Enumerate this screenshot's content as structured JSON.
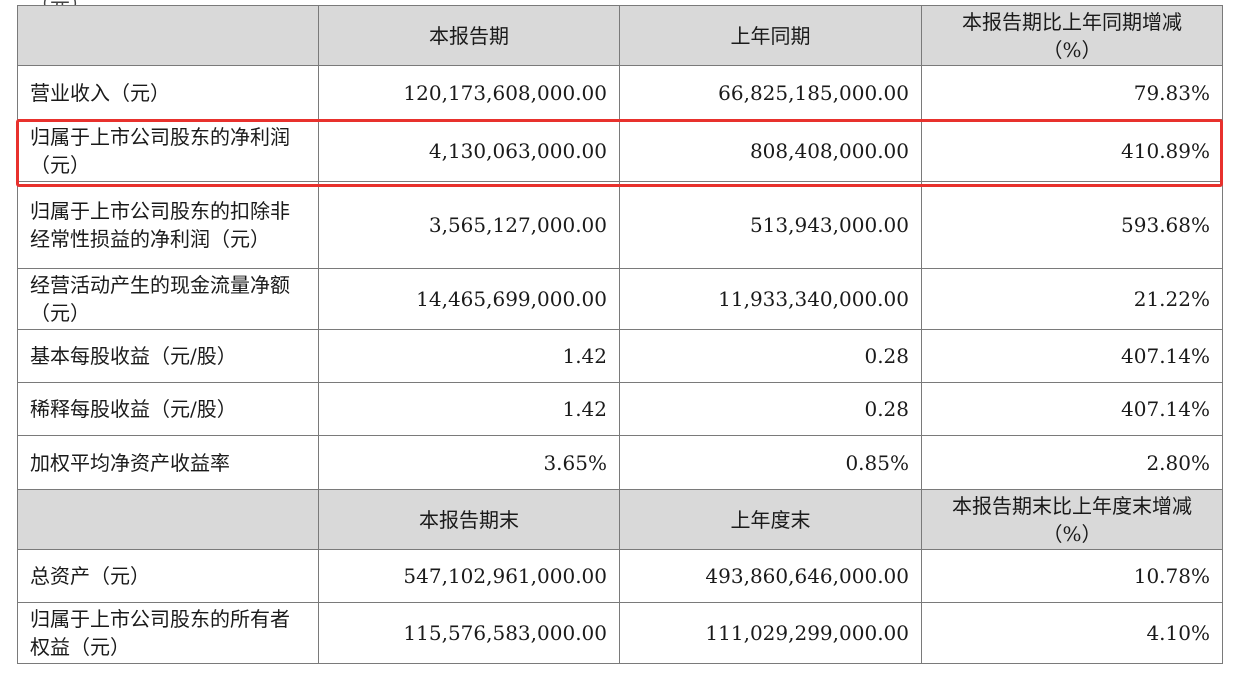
{
  "page": {
    "cut_heading": "（元）"
  },
  "table": {
    "header_1": [
      "",
      "本报告期",
      "上年同期",
      "本报告期比上年同期增减\n（%）"
    ],
    "rows_1": [
      {
        "label": "营业收入（元）",
        "current": "120,173,608,000.00",
        "prior": "66,825,185,000.00",
        "change": "79.83%"
      },
      {
        "label": "归属于上市公司股东的净利润（元）",
        "current": "4,130,063,000.00",
        "prior": "808,408,000.00",
        "change": "410.89%"
      },
      {
        "label": "归属于上市公司股东的扣除非经常性损益的净利润（元）",
        "current": "3,565,127,000.00",
        "prior": "513,943,000.00",
        "change": "593.68%"
      },
      {
        "label": "经营活动产生的现金流量净额（元）",
        "current": "14,465,699,000.00",
        "prior": "11,933,340,000.00",
        "change": "21.22%"
      },
      {
        "label": "基本每股收益（元/股）",
        "current": "1.42",
        "prior": "0.28",
        "change": "407.14%"
      },
      {
        "label": "稀释每股收益（元/股）",
        "current": "1.42",
        "prior": "0.28",
        "change": "407.14%"
      },
      {
        "label": "加权平均净资产收益率",
        "current": "3.65%",
        "prior": "0.85%",
        "change": "2.80%"
      }
    ],
    "header_2": [
      "",
      "本报告期末",
      "上年度末",
      "本报告期末比上年度末增减\n（%）"
    ],
    "rows_2": [
      {
        "label": "总资产（元）",
        "current": "547,102,961,000.00",
        "prior": "493,860,646,000.00",
        "change": "10.78%"
      },
      {
        "label": "归属于上市公司股东的所有者权益（元）",
        "current": "115,576,583,000.00",
        "prior": "111,029,299,000.00",
        "change": "4.10%"
      }
    ]
  },
  "highlight": {
    "color": "#e8312d",
    "row": "归属于上市公司股东的净利润（元）"
  }
}
